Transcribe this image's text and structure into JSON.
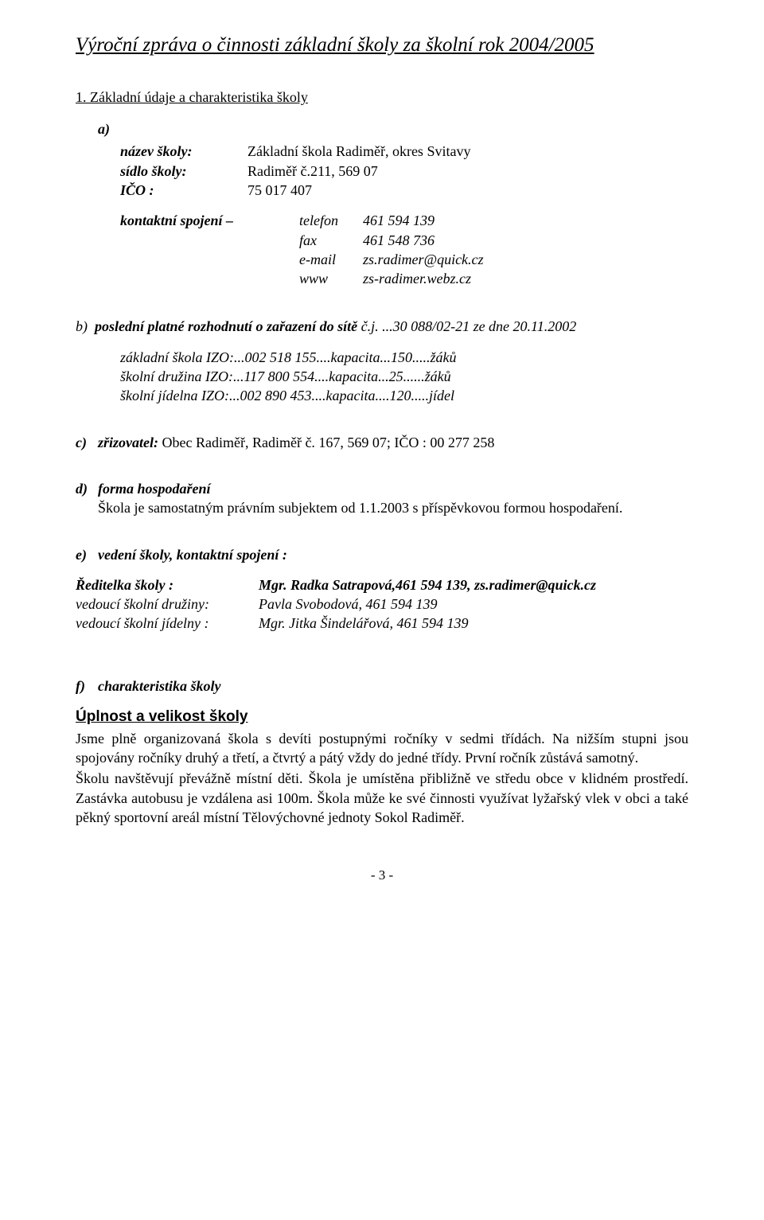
{
  "title": "Výroční zpráva o činnosti základní školy za školní rok 2004/2005",
  "section1_head": "1. Základní údaje a charakteristika školy",
  "a": {
    "letter": "a)",
    "name_label": "název školy:",
    "name_value": "Základní škola Radiměř, okres Svitavy",
    "seat_label": "sídlo školy:",
    "seat_value": "Radiměř č.211, 569 07",
    "ico_label": "IČO :",
    "ico_value": "75 017 407",
    "contact_label": "kontaktní spojení –",
    "telefon_label": "telefon",
    "telefon_value": "461 594 139",
    "fax_label": "fax",
    "fax_value": "461 548 736",
    "email_label": "e-mail",
    "email_value": "zs.radimer@quick.cz",
    "www_label": "www",
    "www_value": "zs-radimer.webz.cz"
  },
  "b": {
    "letter": "b)",
    "text_bold": "poslední platné rozhodnutí o zařazení do sítě",
    "text_rest": " č.j. ...30 088/02-21  ze dne 20.11.2002",
    "line1": "základní škola  IZO:...002 518 155....kapacita...150.....žáků",
    "line2": "školní družina  IZO:...117 800 554....kapacita...25......žáků",
    "line3": "školní jídelna  IZO:...002 890 453....kapacita....120.....jídel"
  },
  "c": {
    "letter": "c)",
    "label": "zřizovatel:",
    "value": " Obec Radiměř, Radiměř č. 167, 569 07;  IČO : 00 277 258"
  },
  "d": {
    "letter": "d)",
    "label": "forma hospodaření",
    "content": "Škola je samostatným právním subjektem od 1.1.2003 s příspěvkovou formou hospodaření."
  },
  "e": {
    "letter": "e)",
    "label": "vedení školy, kontaktní spojení :",
    "role1": "Ředitelka školy :",
    "person1": "Mgr. Radka Satrapová,461 594 139, zs.radimer@quick.cz",
    "role2": "vedoucí školní družiny:",
    "person2": "Pavla Svobodová, 461 594 139",
    "role3": "vedoucí školní jídelny :",
    "person3": "Mgr. Jitka Šindelářová, 461 594 139"
  },
  "f": {
    "letter": "f)",
    "label": "charakteristika školy",
    "subhead": "Úplnost a velikost školy",
    "para1": "Jsme plně organizovaná škola s devíti postupnými ročníky v sedmi třídách. Na nižším stupni jsou spojovány ročníky druhý a třetí, a čtvrtý a pátý vždy do jedné třídy. První ročník zůstává samotný.",
    "para2": "Školu navštěvují převážně místní děti. Škola je umístěna přibližně ve středu obce v klidném prostředí. Zastávka autobusu je vzdálena asi 100m. Škola může ke své činnosti využívat lyžařský vlek v obci a také pěkný sportovní areál místní Tělovýchovné jednoty Sokol Radiměř."
  },
  "page_num": "- 3 -"
}
